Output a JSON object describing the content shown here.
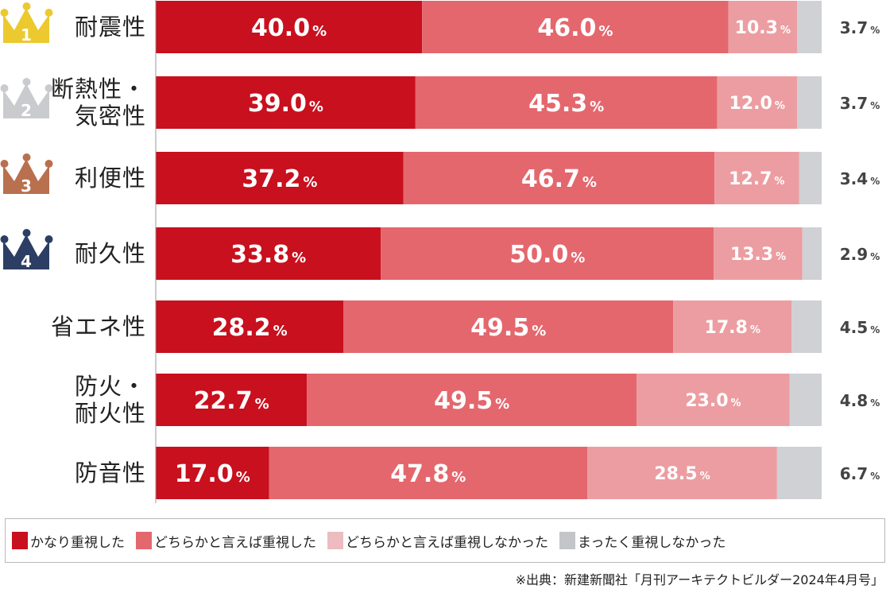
{
  "chart_data": {
    "type": "bar",
    "orientation": "horizontal",
    "stacked": true,
    "unit": "%",
    "categories": [
      {
        "label": [
          "耐震性"
        ],
        "rank": "1",
        "rank_color": "#ecc92f"
      },
      {
        "label": [
          "断熱性・",
          "気密性"
        ],
        "rank": "2",
        "rank_color": "#c9cbcf"
      },
      {
        "label": [
          "利便性"
        ],
        "rank": "3",
        "rank_color": "#b9704f"
      },
      {
        "label": [
          "耐久性"
        ],
        "rank": "4",
        "rank_color": "#2c3e63"
      },
      {
        "label": [
          "省エネ性"
        ],
        "rank": "",
        "rank_color": ""
      },
      {
        "label": [
          "防火・",
          "耐火性"
        ],
        "rank": "",
        "rank_color": ""
      },
      {
        "label": [
          "防音性"
        ],
        "rank": "",
        "rank_color": ""
      }
    ],
    "series": [
      {
        "name": "かなり重視した",
        "color": "#c8101e",
        "values": [
          40.0,
          39.0,
          37.2,
          33.8,
          28.2,
          22.7,
          17.0
        ]
      },
      {
        "name": "どちらかと言えば重視した",
        "color": "#e4676d",
        "values": [
          46.0,
          45.3,
          46.7,
          50.0,
          49.5,
          49.5,
          47.8
        ]
      },
      {
        "name": "どちらかと言えば重視しなかった",
        "color": "#ec9da1",
        "legend_color": "#ecbcc0",
        "values": [
          10.3,
          12.0,
          12.7,
          13.3,
          17.8,
          23.0,
          28.5
        ]
      },
      {
        "name": "まったく重視しなかった",
        "color": "#cfd1d5",
        "legend_color": "#c4c5c8",
        "values": [
          3.7,
          3.7,
          3.4,
          2.9,
          4.5,
          4.8,
          6.7
        ]
      }
    ],
    "xlim": [
      0,
      100
    ],
    "legend": "bottom",
    "grid": false
  },
  "source": "※出典：新建新聞社「月刊アーキテクトビルダー2024年4月号」"
}
